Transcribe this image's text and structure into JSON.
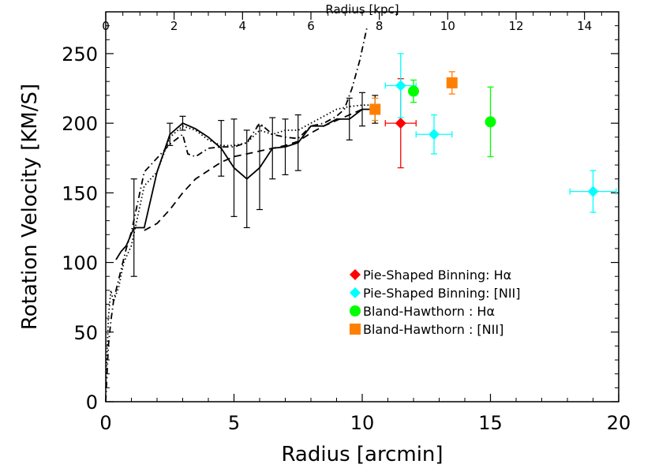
{
  "chart_data": {
    "type": "scatter",
    "title": "",
    "xlabel": "Radius [arcmin]",
    "ylabel": "Rotation Velocity [KM/S]",
    "x2label": "Radius [kpc]",
    "xlim": [
      0,
      20
    ],
    "ylim": [
      0,
      280
    ],
    "x2lim": [
      0,
      15
    ],
    "x_ticks": [
      "0",
      "5",
      "10",
      "15",
      "20"
    ],
    "x_tick_values": [
      0,
      5,
      10,
      15,
      20
    ],
    "y_ticks": [
      "0",
      "50",
      "100",
      "150",
      "200",
      "250"
    ],
    "y_tick_values": [
      0,
      50,
      100,
      150,
      200,
      250
    ],
    "x2_ticks": [
      "0",
      "2",
      "4",
      "6",
      "8",
      "10",
      "12",
      "14"
    ],
    "x2_tick_values": [
      0,
      2,
      4,
      6,
      8,
      10,
      12,
      14
    ],
    "legend_position": "lower-right",
    "lines": [
      {
        "name": "solid",
        "style": "solid",
        "x": [
          0.4,
          0.6,
          0.8,
          1.1,
          1.5,
          2.0,
          2.5,
          3.0,
          3.5,
          4.0,
          4.5,
          5.0,
          5.5,
          6.0,
          6.5,
          7.0,
          7.5,
          8.0,
          8.5,
          9.0,
          9.5,
          10.0,
          10.5
        ],
        "y": [
          102,
          108,
          112,
          125,
          125,
          165,
          192,
          200,
          196,
          190,
          182,
          168,
          160,
          168,
          182,
          183,
          186,
          198,
          198,
          203,
          203,
          210,
          210
        ],
        "errors": [
          null,
          null,
          null,
          35,
          null,
          null,
          8,
          5,
          null,
          null,
          20,
          35,
          35,
          30,
          22,
          20,
          20,
          null,
          null,
          null,
          15,
          12,
          10
        ]
      },
      {
        "name": "dash-dot",
        "style": "dashdot",
        "x": [
          0.0,
          0.1,
          0.2,
          0.3,
          0.4,
          0.6,
          0.8,
          1.0,
          1.5,
          2.0,
          2.5,
          3.0,
          3.2,
          3.5,
          4.0,
          4.5,
          5.0,
          5.5,
          6.0,
          6.5,
          7.0,
          7.5,
          8.0,
          8.5,
          9.0,
          9.3,
          9.6,
          9.9,
          10.2
        ],
        "y": [
          0,
          40,
          58,
          72,
          80,
          95,
          110,
          122,
          165,
          175,
          185,
          192,
          178,
          176,
          182,
          183,
          183,
          186,
          200,
          192,
          190,
          189,
          198,
          200,
          205,
          210,
          225,
          245,
          270
        ]
      },
      {
        "name": "dotted",
        "style": "dotted",
        "x": [
          0.0,
          0.1,
          0.2,
          0.3,
          0.5,
          0.7,
          1.0,
          1.5,
          2.0,
          2.5,
          3.0,
          3.5,
          4.0,
          4.5,
          5.0,
          5.5,
          6.0,
          6.5,
          7.0,
          7.5,
          8.0,
          8.5,
          9.0,
          9.5,
          10.0,
          10.5
        ],
        "y": [
          10,
          60,
          80,
          72,
          82,
          100,
          112,
          155,
          165,
          190,
          198,
          195,
          188,
          184,
          184,
          186,
          195,
          192,
          195,
          195,
          200,
          205,
          210,
          212,
          213,
          213
        ]
      },
      {
        "name": "dashed",
        "style": "dashed",
        "x": [
          1.5,
          2.0,
          2.5,
          3.0,
          3.5,
          4.0,
          4.5,
          5.0,
          5.5,
          6.0,
          6.5,
          7.0,
          7.5,
          8.0,
          8.5,
          9.0,
          9.5,
          10.0
        ],
        "y": [
          123,
          128,
          138,
          150,
          160,
          166,
          172,
          176,
          178,
          180,
          182,
          184,
          187,
          193,
          198,
          202,
          206,
          210
        ]
      }
    ],
    "series": [
      {
        "name": "Pie-Shaped Binning: Hα",
        "marker": "diamond",
        "color": "#ff0000",
        "points": [
          {
            "x": 11.5,
            "y": 200,
            "xerr": 0.6,
            "yerr": 32
          }
        ]
      },
      {
        "name": "Pie-Shaped Binning: [NII]",
        "marker": "diamond",
        "color": "#00ffff",
        "points": [
          {
            "x": 11.5,
            "y": 227,
            "xerr": 0.6,
            "yerr": 23
          },
          {
            "x": 12.8,
            "y": 192,
            "xerr": 0.7,
            "yerr": 14
          },
          {
            "x": 19.0,
            "y": 151,
            "xerr": 0.9,
            "yerr": 15
          }
        ]
      },
      {
        "name": "Bland-Hawthorn : Hα",
        "marker": "circle",
        "color": "#00ff00",
        "points": [
          {
            "x": 12.0,
            "y": 223,
            "xerr": 0,
            "yerr": 8
          },
          {
            "x": 15.0,
            "y": 201,
            "xerr": 0,
            "yerr": 25
          }
        ]
      },
      {
        "name": "Bland-Hawthorn : [NII]",
        "marker": "square",
        "color": "#ff8000",
        "points": [
          {
            "x": 10.5,
            "y": 210,
            "xerr": 0,
            "yerr": 8
          },
          {
            "x": 13.5,
            "y": 229,
            "xerr": 0,
            "yerr": 8
          }
        ]
      }
    ]
  }
}
